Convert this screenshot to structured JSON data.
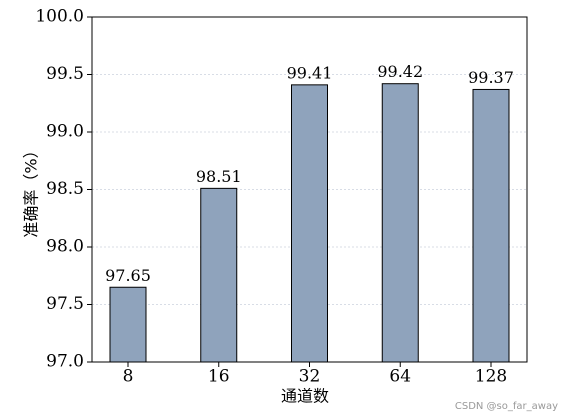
{
  "chart_data": {
    "type": "bar",
    "x_label": "通道数",
    "y_label": "准确率（%）",
    "categories": [
      "8",
      "16",
      "32",
      "64",
      "128"
    ],
    "values": [
      97.65,
      98.51,
      99.41,
      99.42,
      99.37
    ],
    "color": "#8fa3bc",
    "ylim": [
      97,
      100
    ],
    "yticks": [
      {
        "value": 97,
        "label": "97.0"
      },
      {
        "value": 97.5,
        "label": "97.5"
      },
      {
        "value": 98,
        "label": "98.0"
      },
      {
        "value": 98.5,
        "label": "98.5"
      },
      {
        "value": 99,
        "label": "99.0"
      },
      {
        "value": 99.5,
        "label": "99.5"
      },
      {
        "value": 100,
        "label": "100.0"
      }
    ],
    "grid": true,
    "watermark": "CSDN @so_far_away"
  }
}
